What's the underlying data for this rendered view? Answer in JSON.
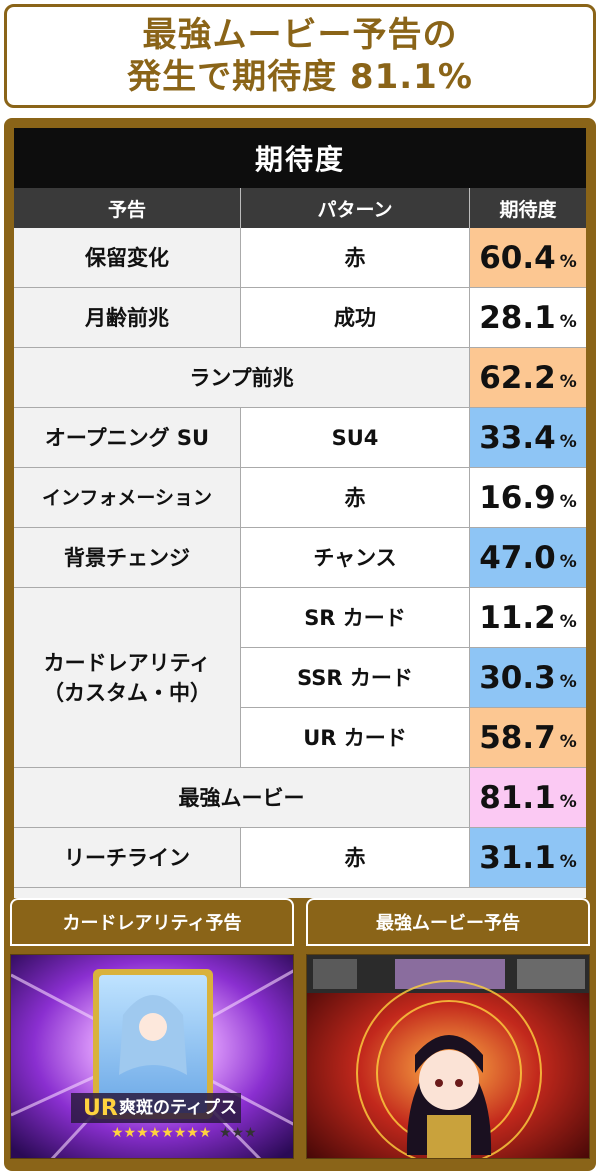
{
  "header": {
    "line1": "最強ムービー予告の",
    "line2": "発生で期待度 81.1%"
  },
  "table": {
    "title": "期待度",
    "columns": [
      "予告",
      "パターン",
      "期待度"
    ],
    "unit": "%",
    "rows": [
      {
        "label": "保留変化",
        "pattern": "赤",
        "value": "60.4",
        "color": "orange"
      },
      {
        "label": "月齢前兆",
        "pattern": "成功",
        "value": "28.1",
        "color": "white"
      },
      {
        "label": "ランプ前兆",
        "pattern": "",
        "value": "62.2",
        "color": "orange"
      },
      {
        "label": "オープニング SU",
        "pattern": "SU4",
        "value": "33.4",
        "color": "blue"
      },
      {
        "label": "インフォメーション",
        "pattern": "赤",
        "value": "16.9",
        "color": "white"
      },
      {
        "label": "背景チェンジ",
        "pattern": "チャンス",
        "value": "47.0",
        "color": "blue"
      },
      {
        "label": "カードレアリティ\n（カスタム・中）",
        "pattern": "SR カード",
        "value": "11.2",
        "color": "white"
      },
      {
        "label": "",
        "pattern": "SSR カード",
        "value": "30.3",
        "color": "blue"
      },
      {
        "label": "",
        "pattern": "UR カード",
        "value": "58.7",
        "color": "orange"
      },
      {
        "label": "最強ムービー",
        "pattern": "",
        "value": "81.1",
        "color": "pink"
      },
      {
        "label": "リーチライン",
        "pattern": "赤",
        "value": "31.1",
        "color": "blue"
      }
    ]
  },
  "panels": {
    "left_title": "カードレアリティ予告",
    "right_title": "最強ムービー予告",
    "card_name": "爽斑のティプス",
    "card_rank": "UR"
  },
  "colors": {
    "gold": "#8a6418",
    "orange": "#fcc792",
    "blue": "#8ec5f5",
    "pink": "#fbc9f3"
  }
}
